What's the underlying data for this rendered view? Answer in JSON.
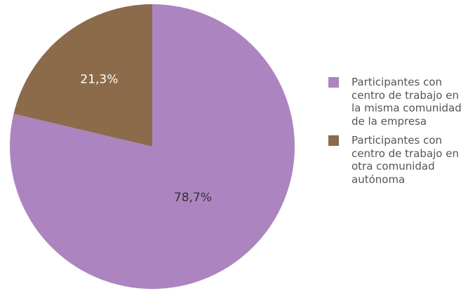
{
  "chart_data": {
    "type": "pie",
    "start_angle_deg": 0,
    "direction": "clockwise",
    "legend_position": "right",
    "slices": [
      {
        "label": "Participantes con centro de trabajo en la misma comunidad de la empresa",
        "value": 78.7,
        "value_label": "78,7%",
        "color": "#ac84bf",
        "label_color": "#333333"
      },
      {
        "label": "Participantes con centro de trabajo en otra comunidad autónoma",
        "value": 21.3,
        "value_label": "21,3%",
        "color": "#8c6b4a",
        "label_color": "#ffffff"
      }
    ]
  }
}
